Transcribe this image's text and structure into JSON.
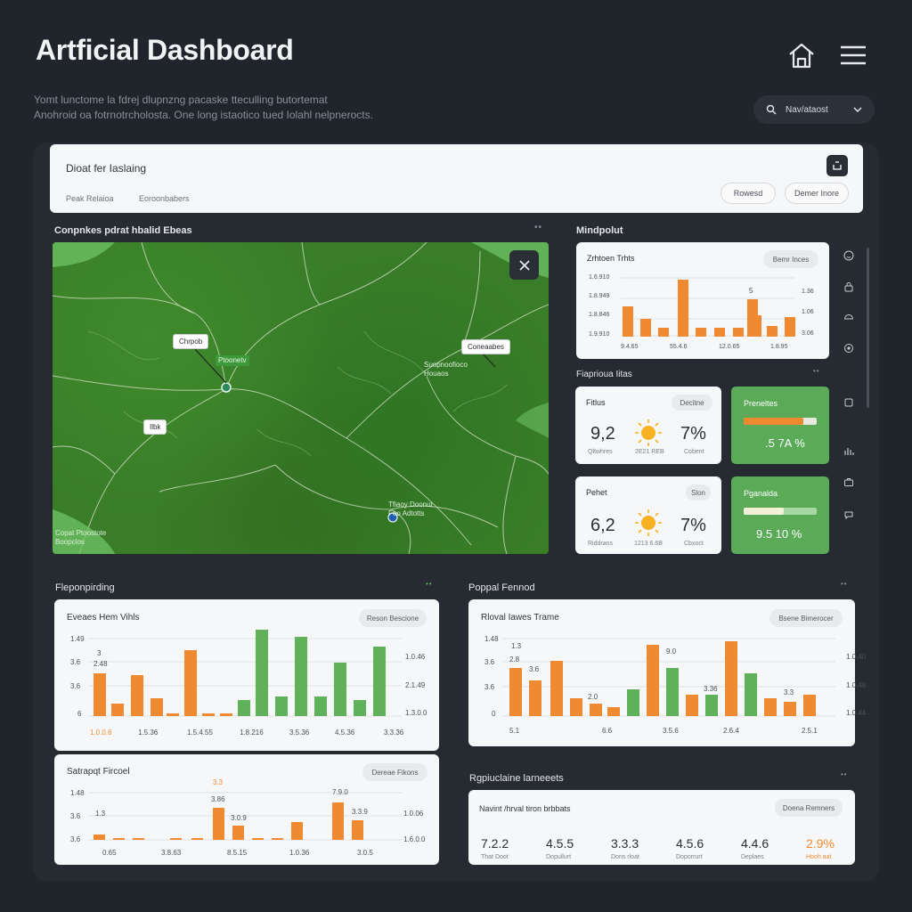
{
  "header": {
    "title": "Artficial Dashboard",
    "subtitle_line1": "Yomt lunctome la fdrej dlupnzng pacaske tteculling butortemat",
    "subtitle_line2": "Anohroid oa fotrnotrcholosta. One long istaotico tued Iolahl nelpnerocts.",
    "search_label": "Nav/ataost"
  },
  "filter": {
    "title": "Dioat fer Iaslaing",
    "tab1": "Peak Relaioa",
    "tab2": "Eoroonbabers",
    "btn1": "Rowesd",
    "btn2": "Demer Inore"
  },
  "map_section": {
    "label": "Conpnkes pdrat hbalid Ebeas",
    "tag1": "Chrpob",
    "tag2": "Coneaabes",
    "tag3": "Ilbk",
    "label_green": "Ptoonetv",
    "text_right": "Suopnoofioco\nHouaos",
    "text_bottom": "Tfiaoy Doonut\nFoo Adtotts",
    "text_left": "Copat Ptoostote\nBoopclos"
  },
  "side_section": {
    "label": "Mindpolut",
    "mini_chart": {
      "title": "Zrhtoen Trhts",
      "pill": "Bemr Inces",
      "y_left": [
        "1.6.910",
        "1.8.949",
        "1.8.846",
        "1.9.910"
      ],
      "y_right": [
        "1.36",
        "1.06",
        "3.06"
      ],
      "x_labels": [
        "9.4.65",
        "55.4.6",
        "12.0.65",
        "1.8.95"
      ],
      "top_label": "5"
    },
    "stats_label": "Fiaprioua Iitas",
    "stat1": {
      "title": "Fitlus",
      "pill": "Decitne",
      "val1": "9,2",
      "val2": "7%",
      "lbl1": "Qltwhres",
      "lbl2": "2E21 REB",
      "lbl3": "Cobent"
    },
    "stat2": {
      "title": "Pehet",
      "pill": "Slon",
      "val1": "6,2",
      "val2": "7%",
      "lbl1": "Riddrans",
      "lbl2": "1213 6.6B",
      "lbl3": "Cbxoct"
    },
    "green1": {
      "title": "Preneltes",
      "value": ".5 7A %"
    },
    "green2": {
      "title": "Pganalda",
      "value": "9.5 10 %"
    }
  },
  "chart1": {
    "section_label": "Fleponpirding",
    "title": "Eveaes Hem Vihls",
    "pill": "Reson Bescione",
    "y_left": [
      "1.49",
      "3.6",
      "3.6",
      "6"
    ],
    "y_right": [
      "1.0.46",
      "2.1.49",
      "1.3.0.0"
    ],
    "x_labels": [
      "1.0.0.6",
      "1.5.36",
      "1.5.4.55",
      "1.8.216",
      "3.5.36",
      "4.5.36",
      "3.3.36"
    ],
    "annot1": "3",
    "annot2": "2.48"
  },
  "chart2": {
    "section_label": "Poppal Fennod",
    "title": "Rloval Iawes Trame",
    "pill": "Bsene Bimerocer",
    "y_left": [
      "1.48",
      "3.6",
      "3.6",
      "0"
    ],
    "y_right": [
      "1.0.40",
      "1.0.48",
      "1.0.44"
    ],
    "x_labels": [
      "5.1",
      "6.6",
      "3.5.6",
      "2.6.4",
      "2.5.1"
    ],
    "annots": [
      "1.3",
      "2.8",
      "3.6",
      "2.0",
      "9.0",
      "3.36",
      "3.3"
    ]
  },
  "chart3": {
    "section_label": "Satrapqt Fircoel",
    "pill": "Dereae Fikons",
    "y_left": [
      "1.48",
      "3.6",
      "3.6"
    ],
    "y_right": [
      "1.0.06",
      "1.6.0.0"
    ],
    "x_labels": [
      "0.65",
      "3.8.63",
      "8.5.15",
      "1.0.36",
      "3.0.5"
    ],
    "annots": [
      "3.3",
      "1.3",
      "3.86",
      "3.0.9",
      "7.9.0",
      "3.3.9"
    ]
  },
  "kpis": {
    "section_label": "Rgpiuclaine larneeets",
    "title": "Navint /hrval tiron brbbats",
    "pill": "Doena Remners",
    "items": [
      {
        "value": "7.2.2",
        "label": "That Doot"
      },
      {
        "value": "4.5.5",
        "label": "Dopullurt"
      },
      {
        "value": "3.3.3",
        "label": "Dons rloat"
      },
      {
        "value": "4.5.6",
        "label": "Doporrurt"
      },
      {
        "value": "4.4.6",
        "label": "Deplaes"
      },
      {
        "value": "2.9%",
        "label": "Hooh aat"
      }
    ]
  },
  "colors": {
    "orange": "#f08a30",
    "green": "#5fb25a",
    "dark": "#20242b",
    "card": "#f6f7f8"
  }
}
